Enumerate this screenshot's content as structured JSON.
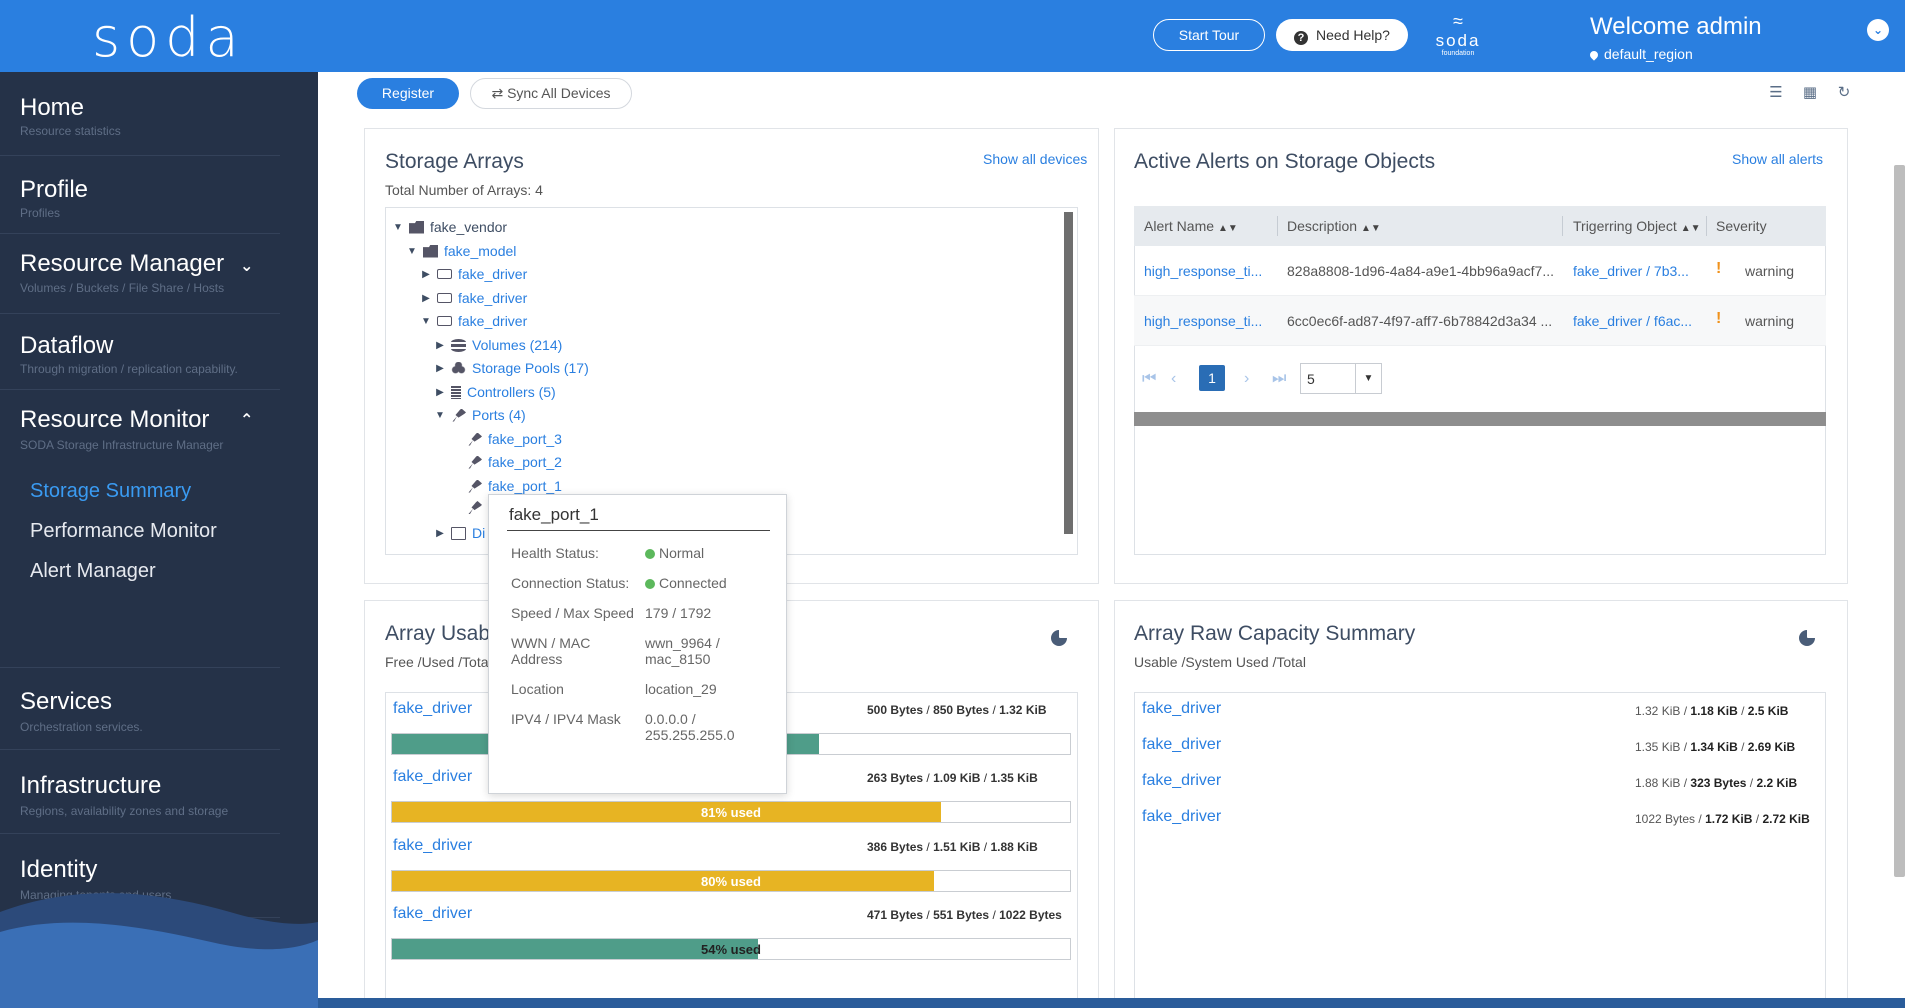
{
  "header": {
    "logo": "soda",
    "start_tour": "Start Tour",
    "need_help": "Need Help?",
    "brand_name": "soda",
    "brand_sub": "foundation",
    "welcome": "Welcome admin",
    "region": "default_region"
  },
  "sidebar": {
    "items": [
      {
        "title": "Home",
        "sub": "Resource statistics"
      },
      {
        "title": "Profile",
        "sub": "Profiles"
      },
      {
        "title": "Resource Manager",
        "sub": "Volumes / Buckets / File Share / Hosts"
      },
      {
        "title": "Dataflow",
        "sub": "Through migration / replication capability."
      },
      {
        "title": "Resource Monitor",
        "sub": "SODA Storage Infrastructure Manager"
      },
      {
        "title": "Services",
        "sub": "Orchestration services."
      },
      {
        "title": "Infrastructure",
        "sub": "Regions, availability zones and storage"
      },
      {
        "title": "Identity",
        "sub": "Managing tenants and users"
      }
    ],
    "monitor_links": [
      "Storage Summary",
      "Performance Monitor",
      "Alert Manager"
    ]
  },
  "toolbar": {
    "register": "Register",
    "sync": "Sync All Devices"
  },
  "storage_arrays": {
    "title": "Storage Arrays",
    "subtitle": "Total Number of Arrays: 4",
    "link": "Show all devices",
    "tree": {
      "vendor": "fake_vendor",
      "model": "fake_model",
      "driver1": "fake_driver",
      "driver2": "fake_driver",
      "driver3": "fake_driver",
      "volumes": "Volumes (214)",
      "pools": "Storage Pools (17)",
      "controllers": "Controllers (5)",
      "ports": "Ports (4)",
      "port3": "fake_port_3",
      "port2": "fake_port_2",
      "port1": "fake_port_1",
      "disks": "Di"
    }
  },
  "tooltip": {
    "title": "fake_port_1",
    "rows": [
      {
        "k": "Health Status:",
        "v": "Normal"
      },
      {
        "k": "Connection Status:",
        "v": "Connected"
      },
      {
        "k": "Speed / Max Speed",
        "v": "179 / 1792"
      },
      {
        "k": "WWN / MAC Address",
        "v": "wwn_9964 / mac_8150"
      },
      {
        "k": "Location",
        "v": "location_29"
      },
      {
        "k": "IPV4 / IPV4 Mask",
        "v": "0.0.0.0 / 255.255.255.0"
      }
    ]
  },
  "alerts": {
    "title": "Active Alerts on Storage Objects",
    "link": "Show all alerts",
    "columns": [
      "Alert Name",
      "Description",
      "Trigerring Object",
      "Severity"
    ],
    "rows": [
      {
        "name": "high_response_ti...",
        "desc": "828a8808-1d96-4a84-a9e1-4bb96a9acf7...",
        "obj": "fake_driver / 7b3...",
        "severity": "warning"
      },
      {
        "name": "high_response_ti...",
        "desc": "6cc0ec6f-ad87-4f97-aff7-6b78842d3a34 ...",
        "obj": "fake_driver / f6ac...",
        "severity": "warning"
      }
    ],
    "page": "1",
    "page_size": "5"
  },
  "usage": {
    "title": "Array Usabl",
    "subtitle": "Free /Used /Tota",
    "rows": [
      {
        "name": "fake_driver",
        "free": "500 Bytes",
        "used": "850 Bytes",
        "total": "1.32 KiB",
        "pct": 63,
        "label": "",
        "color": "#4f9d89"
      },
      {
        "name": "fake_driver",
        "free": "263 Bytes",
        "used": "1.09 KiB",
        "total": "1.35 KiB",
        "pct": 81,
        "label": "81% used",
        "color": "#e7b423"
      },
      {
        "name": "fake_driver",
        "free": "386 Bytes",
        "used": "1.51 KiB",
        "total": "1.88 KiB",
        "pct": 80,
        "label": "80% used",
        "color": "#e7b423"
      },
      {
        "name": "fake_driver",
        "free": "471 Bytes",
        "used": "551 Bytes",
        "total": "1022 Bytes",
        "pct": 54,
        "label": "54% used",
        "color": "#4f9d89"
      }
    ]
  },
  "raw": {
    "title": "Array Raw Capacity Summary",
    "subtitle": "Usable /System Used /Total",
    "rows": [
      {
        "name": "fake_driver",
        "usable": "1.32 KiB",
        "sys": "1.18 KiB",
        "total": "2.5 KiB"
      },
      {
        "name": "fake_driver",
        "usable": "1.35 KiB",
        "sys": "1.34 KiB",
        "total": "2.69 KiB"
      },
      {
        "name": "fake_driver",
        "usable": "1.88 KiB",
        "sys": "323 Bytes",
        "total": "2.2 KiB"
      },
      {
        "name": "fake_driver",
        "usable": "1022 Bytes",
        "sys": "1.72 KiB",
        "total": "2.72 KiB"
      }
    ]
  },
  "colors": {
    "accent": "#2a7fe0",
    "sidebar": "#253248",
    "warning": "#e7b423",
    "ok": "#4f9d89"
  }
}
